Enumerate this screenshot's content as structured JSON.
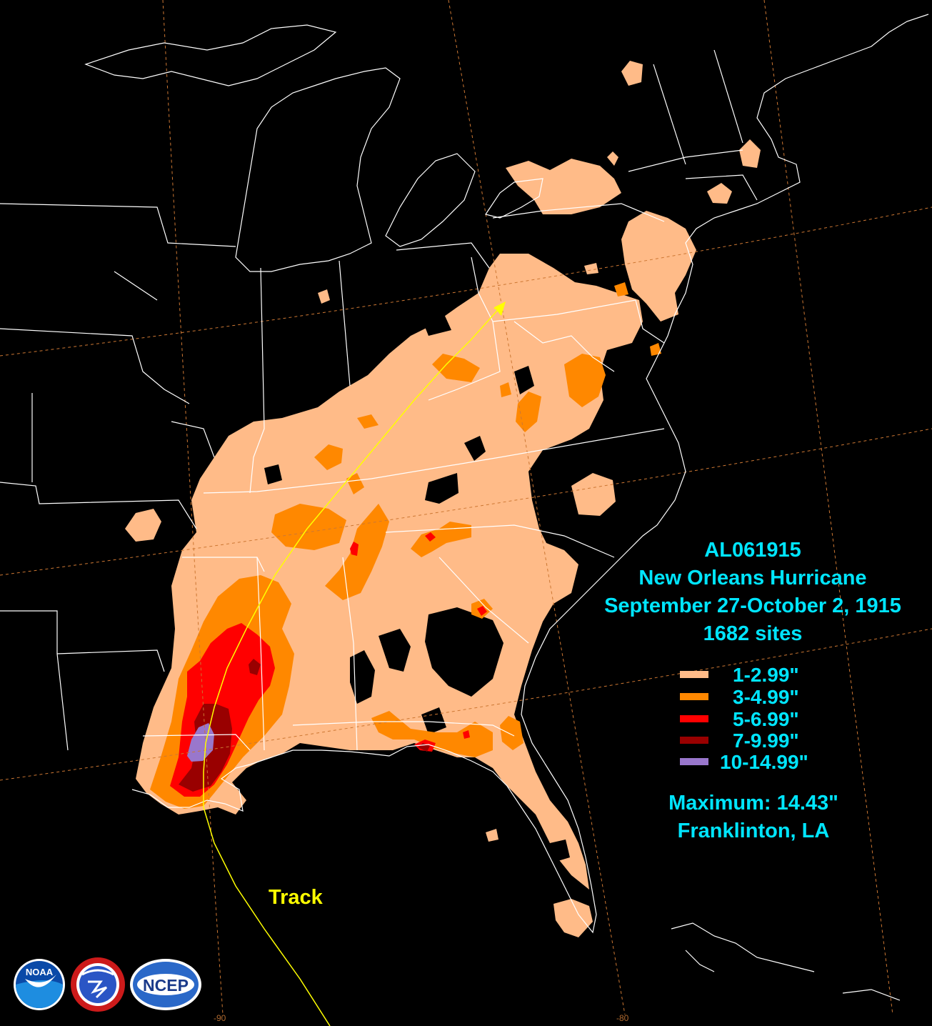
{
  "storm": {
    "id": "AL061915",
    "name": "New Orleans Hurricane",
    "dates": "September 27-October 2, 1915",
    "sites": "1682 sites"
  },
  "legend": [
    {
      "label": "1-2.99\"",
      "color": "#ffbb88"
    },
    {
      "label": "3-4.99\"",
      "color": "#ff8800"
    },
    {
      "label": "5-6.99\"",
      "color": "#ff0000"
    },
    {
      "label": "7-9.99\"",
      "color": "#990000"
    },
    {
      "label": "10-14.99\"",
      "color": "#9977cc"
    }
  ],
  "maximum": {
    "value": "Maximum: 14.43\"",
    "location": "Franklinton, LA"
  },
  "track": {
    "label": "Track",
    "color": "#ffff00"
  },
  "longitudes": {
    "west": "-90",
    "east": "-80"
  },
  "logos": {
    "noaa": "NOAA",
    "nws": "NATIONAL WEATHER SERVICE",
    "ncep": "NCEP"
  },
  "colors": {
    "background": "#000000",
    "boundaries": "#ffffff",
    "graticule": "#cc7733",
    "text": "#00e5ff"
  }
}
